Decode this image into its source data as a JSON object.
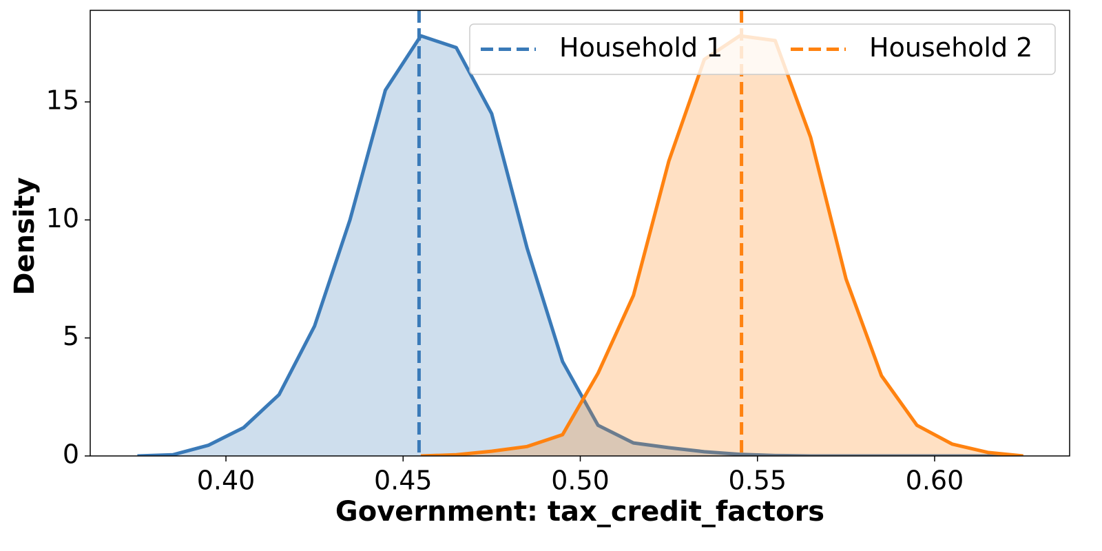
{
  "chart_data": {
    "type": "density",
    "xlabel": "Government: tax_credit_factors",
    "ylabel": "Density",
    "x": [
      0.375,
      0.385,
      0.395,
      0.405,
      0.415,
      0.425,
      0.435,
      0.445,
      0.455,
      0.465,
      0.475,
      0.485,
      0.495,
      0.505,
      0.515,
      0.525,
      0.535,
      0.545,
      0.555,
      0.565,
      0.575,
      0.585,
      0.595,
      0.605,
      0.615,
      0.625
    ],
    "series": [
      {
        "name": "Household 1",
        "color": "#3a7ab8",
        "mean": 0.4545,
        "values": [
          0,
          0.05,
          0.45,
          1.2,
          2.6,
          5.5,
          10,
          15.5,
          17.8,
          17.3,
          14.5,
          8.8,
          4.0,
          1.3,
          0.55,
          0.35,
          0.18,
          0.07,
          0.02,
          0,
          0,
          0,
          0,
          0,
          0,
          0
        ]
      },
      {
        "name": "Household 2",
        "color": "#ff8210",
        "mean": 0.5455,
        "values": [
          null,
          null,
          null,
          null,
          null,
          null,
          null,
          null,
          0,
          0.05,
          0.2,
          0.4,
          0.9,
          3.5,
          6.8,
          12.5,
          16.8,
          17.8,
          17.6,
          13.5,
          7.5,
          3.4,
          1.3,
          0.5,
          0.15,
          0
        ]
      }
    ],
    "xlim": [
      0.3617,
      0.6381
    ],
    "ylim": [
      0,
      18.88
    ],
    "xticks": [
      {
        "value": 0.4,
        "label": "0.40"
      },
      {
        "value": 0.45,
        "label": "0.45"
      },
      {
        "value": 0.5,
        "label": "0.50"
      },
      {
        "value": 0.55,
        "label": "0.55"
      },
      {
        "value": 0.6,
        "label": "0.60"
      }
    ],
    "yticks": [
      0,
      5,
      10,
      15
    ],
    "legend": "upper right",
    "fill_opacity": 0.25
  }
}
